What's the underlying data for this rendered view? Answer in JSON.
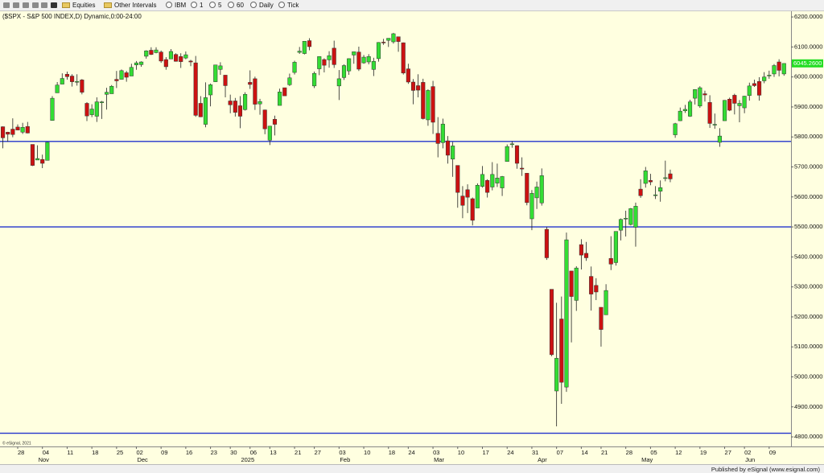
{
  "toolbar": [
    "Equities",
    "Other Intervals",
    "IBM",
    "1",
    "5",
    "60",
    "Daily",
    "Tick"
  ],
  "footer": "Published by eSignal (www.esignal.com)",
  "chart_data": {
    "type": "candlestick",
    "title": "($SPX - S&P 500 INDEX,D) Dynamic,0:00-24:00",
    "copyright": "© eSignal, 2021",
    "up_color": "#33dd33",
    "down_color": "#cc1111",
    "wick_color": "#222222",
    "hline_color": "#2233cc",
    "hlines": [
      5785,
      5500,
      4812
    ],
    "last_price": {
      "value": 6045.26,
      "label": "6045.2600"
    },
    "last_price_color": "#22dd22",
    "ylim": [
      4768,
      6219
    ],
    "yticks": [
      {
        "value": 6200,
        "label": "6200.0000"
      },
      {
        "value": 6100,
        "label": "6100.0000"
      },
      {
        "value": 6000,
        "label": "6000.0000"
      },
      {
        "value": 5900,
        "label": "5900.0000"
      },
      {
        "value": 5800,
        "label": "5800.0000"
      },
      {
        "value": 5700,
        "label": "5700.0000"
      },
      {
        "value": 5600,
        "label": "5600.0000"
      },
      {
        "value": 5500,
        "label": "5500.0000"
      },
      {
        "value": 5400,
        "label": "5400.0000"
      },
      {
        "value": 5300,
        "label": "5300.0000"
      },
      {
        "value": 5200,
        "label": "5200.0000"
      },
      {
        "value": 5100,
        "label": "5100.0000"
      },
      {
        "value": 5000,
        "label": "5000.0000"
      },
      {
        "value": 4900,
        "label": "4900.0000"
      },
      {
        "value": 4800,
        "label": "4800.0000"
      }
    ],
    "categories": [
      null,
      null,
      null,
      "28",
      null,
      null,
      null,
      null,
      "04",
      null,
      null,
      null,
      null,
      "11",
      null,
      null,
      null,
      null,
      "18",
      null,
      null,
      null,
      null,
      "25",
      null,
      null,
      null,
      "02",
      null,
      null,
      null,
      null,
      "09",
      null,
      null,
      null,
      null,
      "16",
      null,
      null,
      null,
      null,
      "23",
      null,
      null,
      null,
      "30",
      null,
      null,
      null,
      "06",
      null,
      null,
      null,
      "13",
      null,
      null,
      null,
      null,
      "21",
      null,
      null,
      null,
      "27",
      null,
      null,
      null,
      null,
      "03",
      null,
      null,
      null,
      null,
      "10",
      null,
      null,
      null,
      null,
      "18",
      null,
      null,
      null,
      "24",
      null,
      null,
      null,
      null,
      "03",
      null,
      null,
      null,
      null,
      "10",
      null,
      null,
      null,
      null,
      "17",
      null,
      null,
      null,
      null,
      "24",
      null,
      null,
      null,
      null,
      "31",
      null,
      null,
      null,
      null,
      "07",
      null,
      null,
      null,
      null,
      "14",
      null,
      null,
      null,
      "21",
      null,
      null,
      null,
      null,
      "28",
      null,
      null,
      null,
      null,
      "05",
      null,
      null,
      null,
      null,
      "12",
      null,
      null,
      null,
      null,
      "19",
      null,
      null,
      null,
      null,
      "27",
      null,
      null,
      null,
      "02",
      null,
      null,
      null,
      null,
      "09",
      null,
      null,
      null
    ],
    "month_labels": [
      null,
      null,
      null,
      null,
      null,
      null,
      null,
      "Nov",
      null,
      null,
      null,
      null,
      null,
      null,
      null,
      null,
      null,
      null,
      null,
      null,
      null,
      null,
      null,
      null,
      null,
      null,
      null,
      "Dec",
      null,
      null,
      null,
      null,
      null,
      null,
      null,
      null,
      null,
      null,
      null,
      null,
      null,
      null,
      null,
      null,
      null,
      null,
      null,
      null,
      "2025",
      null,
      null,
      null,
      null,
      null,
      null,
      null,
      null,
      null,
      null,
      null,
      null,
      null,
      null,
      null,
      null,
      null,
      null,
      null,
      "Feb",
      null,
      null,
      null,
      null,
      null,
      null,
      null,
      null,
      null,
      null,
      null,
      null,
      null,
      null,
      null,
      null,
      null,
      null,
      "Mar",
      null,
      null,
      null,
      null,
      null,
      null,
      null,
      null,
      null,
      null,
      null,
      null,
      null,
      null,
      null,
      null,
      null,
      null,
      null,
      null,
      "Apr",
      null,
      null,
      null,
      null,
      null,
      null,
      null,
      null,
      null,
      null,
      null,
      null,
      null,
      null,
      null,
      null,
      null,
      null,
      null,
      null,
      "May",
      null,
      null,
      null,
      null,
      null,
      null,
      null,
      null,
      null,
      null,
      null,
      null,
      null,
      null,
      null,
      null,
      null,
      null,
      null,
      null,
      "Jun",
      null,
      null,
      null,
      null,
      null,
      null,
      null,
      null
    ],
    "ohlc": [
      [
        5834,
        5835,
        5762,
        5797
      ],
      [
        5816,
        5817,
        5784,
        5809
      ],
      [
        5826,
        5862,
        5799,
        5808
      ],
      [
        5833,
        5842,
        5823,
        5823
      ],
      [
        5816,
        5847,
        5810,
        5832
      ],
      [
        5835,
        5850,
        5812,
        5813
      ],
      [
        5775,
        5775,
        5703,
        5705
      ],
      [
        5723,
        5772,
        5723,
        5728
      ],
      [
        5725,
        5741,
        5696,
        5712
      ],
      [
        5722,
        5783,
        5722,
        5782
      ],
      [
        5855,
        5936,
        5855,
        5929
      ],
      [
        5947,
        5983,
        5947,
        5973
      ],
      [
        5976,
        6012,
        5976,
        5995
      ],
      [
        6009,
        6018,
        5991,
        6001
      ],
      [
        6003,
        6009,
        5968,
        5984
      ],
      [
        5985,
        6009,
        5971,
        5985
      ],
      [
        5990,
        5993,
        5942,
        5949
      ],
      [
        5912,
        5916,
        5853,
        5870
      ],
      [
        5874,
        5909,
        5866,
        5893
      ],
      [
        5869,
        5932,
        5850,
        5917
      ],
      [
        5914,
        5920,
        5860,
        5917
      ],
      [
        5942,
        5964,
        5891,
        5949
      ],
      [
        5944,
        5973,
        5944,
        5969
      ],
      [
        5992,
        6020,
        5963,
        5987
      ],
      [
        5992,
        6025,
        5992,
        6021
      ],
      [
        6014,
        6020,
        5984,
        5999
      ],
      [
        6003,
        6044,
        6003,
        6032
      ],
      [
        6040,
        6053,
        6024,
        6047
      ],
      [
        6041,
        6052,
        6034,
        6050
      ],
      [
        6069,
        6089,
        6061,
        6087
      ],
      [
        6089,
        6099,
        6073,
        6075
      ],
      [
        6081,
        6099,
        6079,
        6090
      ],
      [
        6083,
        6088,
        6047,
        6053
      ],
      [
        6058,
        6066,
        6024,
        6034
      ],
      [
        6060,
        6093,
        6060,
        6085
      ],
      [
        6075,
        6079,
        6051,
        6052
      ],
      [
        6068,
        6079,
        6030,
        6051
      ],
      [
        6063,
        6085,
        6059,
        6074
      ],
      [
        6053,
        6057,
        6036,
        6050
      ],
      [
        6047,
        6070,
        5867,
        5872
      ],
      [
        5912,
        5936,
        5866,
        5867
      ],
      [
        5842,
        5982,
        5832,
        5931
      ],
      [
        5940,
        5978,
        5902,
        5974
      ],
      [
        5984,
        6040,
        5983,
        6040
      ],
      [
        6025,
        6049,
        6007,
        6037
      ],
      [
        6006,
        6006,
        5932,
        5971
      ],
      [
        5920,
        5941,
        5879,
        5907
      ],
      [
        5920,
        5930,
        5868,
        5882
      ],
      [
        5904,
        5936,
        5829,
        5869
      ],
      [
        5891,
        5949,
        5888,
        5942
      ],
      [
        5982,
        6022,
        5960,
        5975
      ],
      [
        5994,
        6001,
        5890,
        5909
      ],
      [
        5910,
        5927,
        5874,
        5918
      ],
      [
        5890,
        5891,
        5809,
        5827
      ],
      [
        5789,
        5837,
        5773,
        5836
      ],
      [
        5859,
        5871,
        5805,
        5842
      ],
      [
        5905,
        5961,
        5905,
        5950
      ],
      [
        5964,
        5964,
        5938,
        5937
      ],
      [
        5974,
        6011,
        5970,
        5997
      ],
      [
        6015,
        6054,
        6008,
        6049
      ],
      [
        6082,
        6100,
        6077,
        6086
      ],
      [
        6078,
        6119,
        6075,
        6119
      ],
      [
        6121,
        6129,
        6089,
        6101
      ],
      [
        5970,
        6018,
        5963,
        6012
      ],
      [
        6027,
        6069,
        6006,
        6068
      ],
      [
        6058,
        6062,
        6015,
        6039
      ],
      [
        6057,
        6086,
        6031,
        6071
      ],
      [
        6096,
        6121,
        6030,
        6041
      ],
      [
        5970,
        6023,
        5923,
        5994
      ],
      [
        5998,
        6042,
        5990,
        6038
      ],
      [
        6020,
        6062,
        6007,
        6061
      ],
      [
        6073,
        6084,
        6044,
        6084
      ],
      [
        6083,
        6101,
        6020,
        6026
      ],
      [
        6047,
        6073,
        6044,
        6066
      ],
      [
        6050,
        6076,
        6042,
        6068
      ],
      [
        6025,
        6064,
        6003,
        6052
      ],
      [
        6061,
        6116,
        6051,
        6115
      ],
      [
        6116,
        6127,
        6107,
        6115
      ],
      [
        6122,
        6129,
        6100,
        6129
      ],
      [
        6117,
        6147,
        6111,
        6144
      ],
      [
        6134,
        6134,
        6084,
        6118
      ],
      [
        6114,
        6115,
        6008,
        6013
      ],
      [
        6027,
        6044,
        5977,
        5983
      ],
      [
        5983,
        5993,
        5909,
        5955
      ],
      [
        5971,
        6009,
        5932,
        5956
      ],
      [
        5982,
        5994,
        5858,
        5861
      ],
      [
        5857,
        5959,
        5837,
        5955
      ],
      [
        5968,
        5987,
        5810,
        5849
      ],
      [
        5812,
        5866,
        5732,
        5778
      ],
      [
        5781,
        5861,
        5762,
        5843
      ],
      [
        5787,
        5803,
        5711,
        5739
      ],
      [
        5726,
        5783,
        5667,
        5770
      ],
      [
        5705,
        5705,
        5564,
        5615
      ],
      [
        5603,
        5636,
        5529,
        5572
      ],
      [
        5624,
        5642,
        5546,
        5599
      ],
      [
        5594,
        5598,
        5505,
        5522
      ],
      [
        5563,
        5645,
        5563,
        5639
      ],
      [
        5635,
        5703,
        5631,
        5675
      ],
      [
        5655,
        5659,
        5598,
        5615
      ],
      [
        5633,
        5716,
        5622,
        5675
      ],
      [
        5646,
        5711,
        5633,
        5663
      ],
      [
        5630,
        5670,
        5603,
        5668
      ],
      [
        5718,
        5775,
        5718,
        5768
      ],
      [
        5775,
        5786,
        5764,
        5777
      ],
      [
        5771,
        5772,
        5694,
        5712
      ],
      [
        5696,
        5732,
        5670,
        5693
      ],
      [
        5679,
        5679,
        5572,
        5581
      ],
      [
        5527,
        5623,
        5489,
        5612
      ],
      [
        5597,
        5651,
        5560,
        5633
      ],
      [
        5580,
        5695,
        5571,
        5671
      ],
      [
        5492,
        5500,
        5390,
        5397
      ],
      [
        5292,
        5292,
        5069,
        5074
      ],
      [
        4953,
        5247,
        4835,
        5062
      ],
      [
        5193,
        5268,
        4910,
        4982
      ],
      [
        4966,
        5481,
        4950,
        5457
      ],
      [
        5353,
        5353,
        5115,
        5268
      ],
      [
        5255,
        5369,
        5220,
        5363
      ],
      [
        5441,
        5459,
        5358,
        5406
      ],
      [
        5412,
        5450,
        5387,
        5397
      ],
      [
        5335,
        5368,
        5221,
        5276
      ],
      [
        5305,
        5329,
        5256,
        5283
      ],
      [
        5232,
        5232,
        5101,
        5158
      ],
      [
        5207,
        5309,
        5207,
        5288
      ],
      [
        5395,
        5469,
        5356,
        5376
      ],
      [
        5381,
        5485,
        5371,
        5485
      ],
      [
        5489,
        5528,
        5455,
        5525
      ],
      [
        5529,
        5554,
        5468,
        5529
      ],
      [
        5508,
        5563,
        5505,
        5561
      ],
      [
        5499,
        5581,
        5434,
        5569
      ],
      [
        5626,
        5659,
        5597,
        5604
      ],
      [
        5645,
        5700,
        5631,
        5687
      ],
      [
        5655,
        5677,
        5639,
        5650
      ],
      [
        5606,
        5636,
        5593,
        5607
      ],
      [
        5619,
        5655,
        5584,
        5631
      ],
      [
        5663,
        5721,
        5652,
        5664
      ],
      [
        5677,
        5691,
        5649,
        5660
      ],
      [
        5807,
        5847,
        5797,
        5844
      ],
      [
        5854,
        5898,
        5853,
        5886
      ],
      [
        5887,
        5907,
        5880,
        5892
      ],
      [
        5869,
        5924,
        5867,
        5917
      ],
      [
        5929,
        5959,
        5908,
        5958
      ],
      [
        5903,
        5969,
        5897,
        5964
      ],
      [
        5944,
        5954,
        5918,
        5940
      ],
      [
        5915,
        5939,
        5830,
        5845
      ],
      [
        5842,
        5878,
        5827,
        5842
      ],
      [
        5782,
        5829,
        5767,
        5803
      ],
      [
        5854,
        5923,
        5854,
        5922
      ],
      [
        5926,
        5931,
        5886,
        5889
      ],
      [
        5939,
        5944,
        5875,
        5912
      ],
      [
        5904,
        5923,
        5849,
        5912
      ],
      [
        5897,
        5937,
        5879,
        5936
      ],
      [
        5938,
        5981,
        5921,
        5970
      ],
      [
        5978,
        5991,
        5967,
        5971
      ],
      [
        5985,
        5999,
        5921,
        5939
      ],
      [
        5987,
        6016,
        5979,
        6000
      ],
      [
        6005,
        6021,
        5994,
        6006
      ],
      [
        6010,
        6043,
        6000,
        6038
      ],
      [
        6050,
        6059,
        6002,
        6022
      ],
      [
        6010,
        6045,
        6004,
        6045
      ]
    ]
  }
}
